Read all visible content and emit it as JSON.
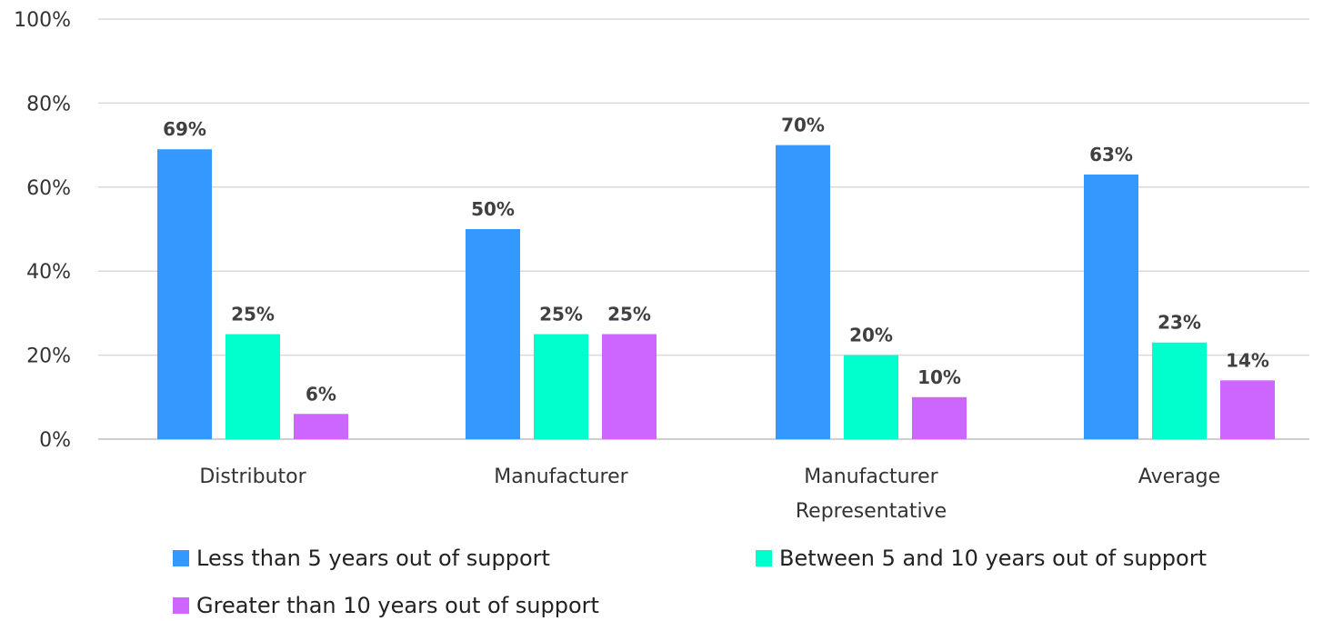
{
  "chart_data": {
    "type": "bar",
    "categories": [
      "Distributor",
      "Manufacturer",
      "Manufacturer Representative",
      "Average"
    ],
    "category_lines": [
      [
        "Distributor"
      ],
      [
        "Manufacturer"
      ],
      [
        "Manufacturer",
        "Representative"
      ],
      [
        "Average"
      ]
    ],
    "series": [
      {
        "name": "Less than 5 years out of support",
        "values": [
          69,
          50,
          70,
          63
        ],
        "labels": [
          "69%",
          "50%",
          "70%",
          "63%"
        ],
        "color": "#3399FF"
      },
      {
        "name": "Between 5 and 10 years out of support",
        "values": [
          25,
          25,
          20,
          23
        ],
        "labels": [
          "25%",
          "25%",
          "20%",
          "23%"
        ],
        "color": "#00FFCC"
      },
      {
        "name": "Greater than 10 years out of support",
        "values": [
          6,
          25,
          10,
          14
        ],
        "labels": [
          "6%",
          "25%",
          "10%",
          "14%"
        ],
        "color": "#CC66FF"
      }
    ],
    "ylim": [
      0,
      100
    ],
    "yticks": [
      "0%",
      "20%",
      "40%",
      "60%",
      "80%",
      "100%"
    ],
    "ytick_values": [
      0,
      20,
      40,
      60,
      80,
      100
    ],
    "grid": true,
    "legend_position": "bottom",
    "title": "",
    "xlabel": "",
    "ylabel": ""
  }
}
